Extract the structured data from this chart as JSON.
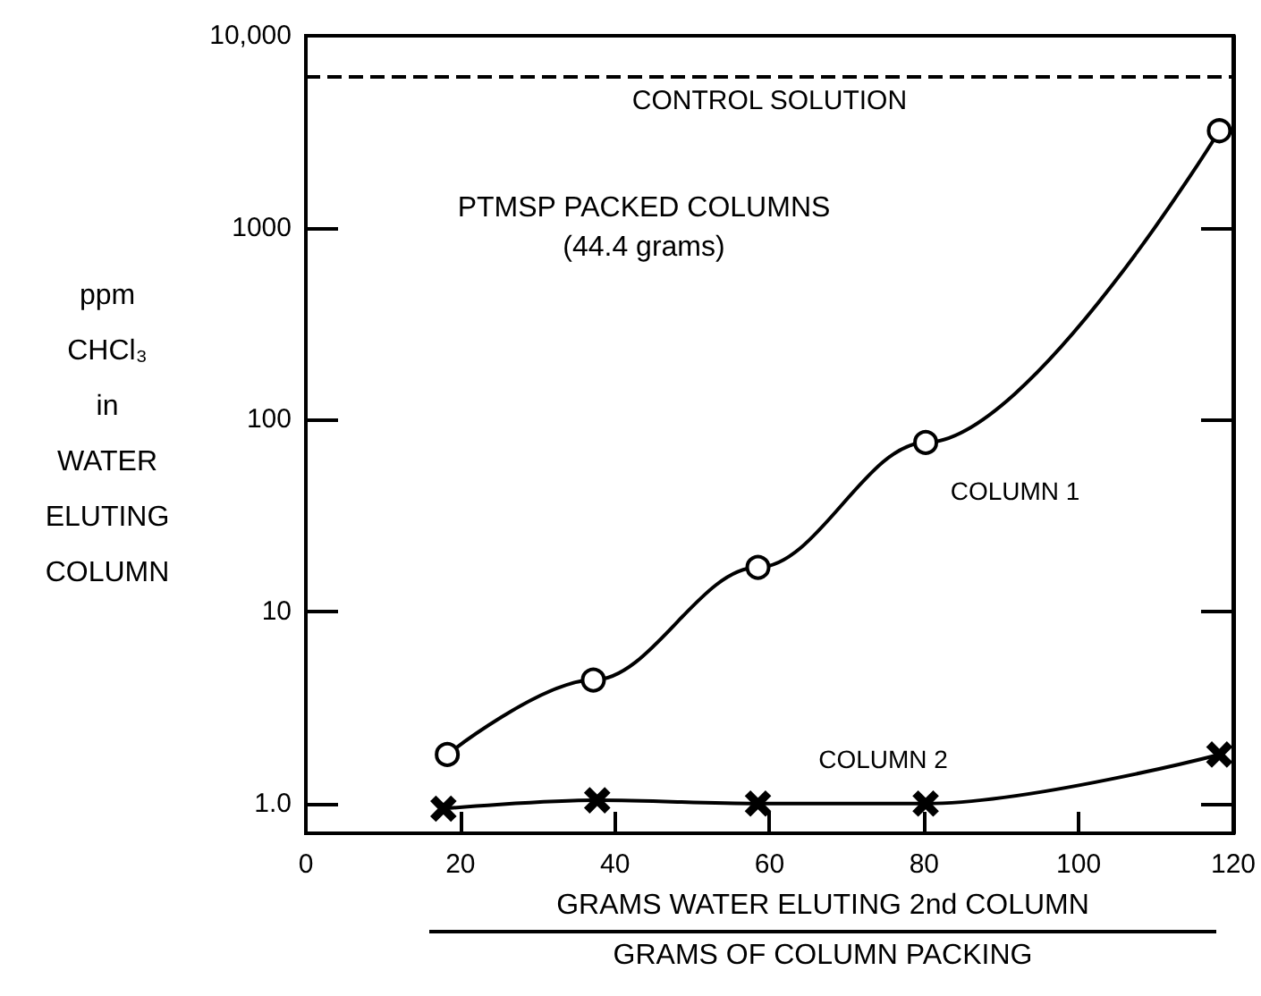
{
  "chart_data": {
    "type": "line",
    "xlabel": "GRAMS WATER ELUTING 2nd COLUMN\nGRAMS OF COLUMN PACKING",
    "ylabel": "ppm\nCHCl₃\nin\nWATER\nELUTING\nCOLUMN",
    "annotations": [
      "PTMSP PACKED COLUMNS",
      "(44.4 grams)"
    ],
    "log": "y",
    "xlim": [
      0,
      120
    ],
    "xticks": [
      0,
      20,
      40,
      60,
      80,
      100,
      120
    ],
    "ylim": [
      0.7,
      10000
    ],
    "yticks": [
      {
        "value": 1,
        "label": "1.0"
      },
      10,
      100,
      1000,
      {
        "value": 10000,
        "label": "10,000"
      }
    ],
    "grid": false,
    "line_style": "solid",
    "ref_lines": [
      {
        "axis": "y",
        "value": 6100,
        "label": "CONTROL SOLUTION",
        "line_style": "dashed",
        "color": "#000000"
      }
    ],
    "series": [
      {
        "name": "COLUMN 1",
        "color": "#000000",
        "marker": "circle",
        "x": [
          18.3,
          37.2,
          58.5,
          80.2,
          118.2
        ],
        "values": [
          1.8,
          4.4,
          17,
          76,
          3200
        ]
      },
      {
        "name": "COLUMN 2",
        "color": "#000000",
        "marker": "cross",
        "x": [
          17.8,
          37.7,
          58.5,
          80.2,
          118.2
        ],
        "values": [
          0.94,
          1.04,
          1.0,
          1.0,
          1.8
        ]
      }
    ]
  }
}
